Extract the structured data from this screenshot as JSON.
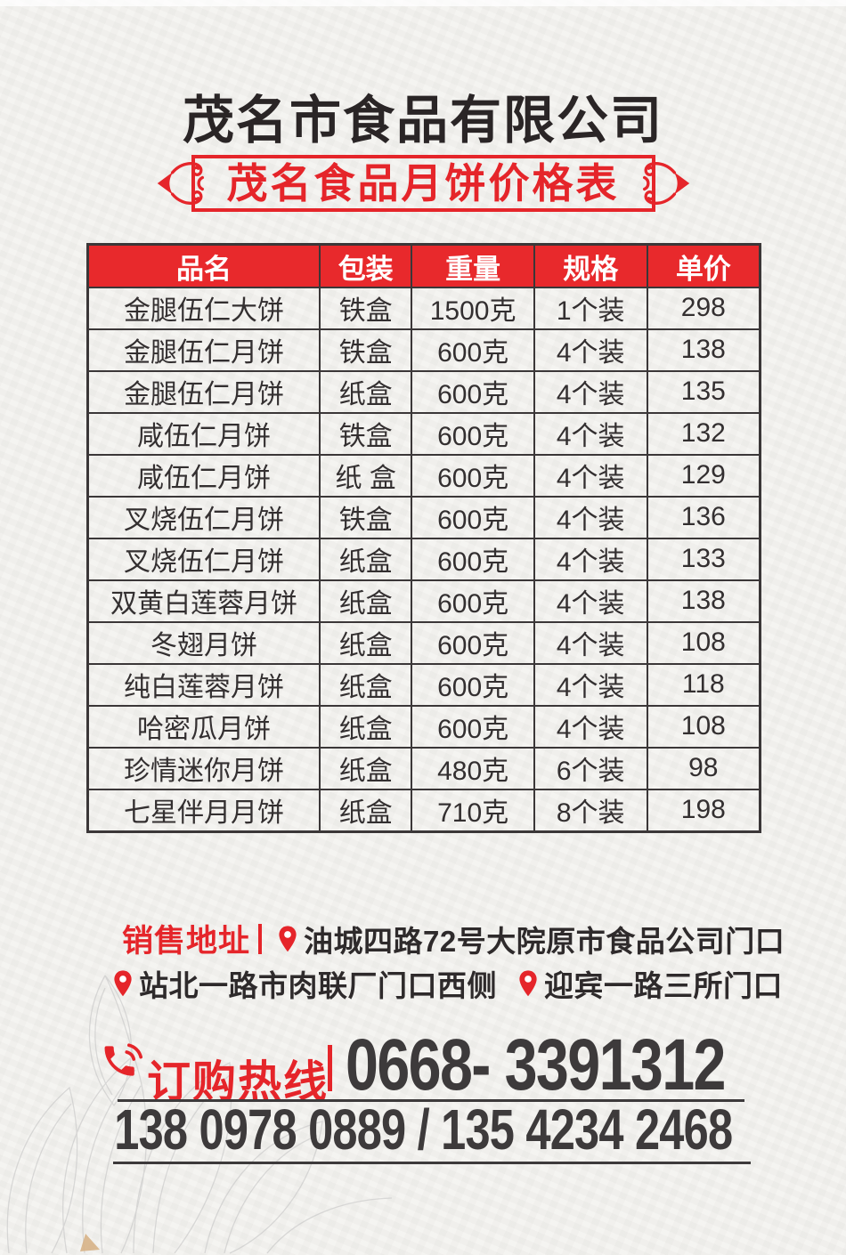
{
  "header": {
    "company": "茂名市食品有限公司",
    "banner": "茂名食品月饼价格表"
  },
  "table": {
    "headers": [
      "品名",
      "包装",
      "重量",
      "规格",
      "单价"
    ],
    "rows": [
      [
        "金腿伍仁大饼",
        "铁盒",
        "1500克",
        "1个装",
        "298"
      ],
      [
        "金腿伍仁月饼",
        "铁盒",
        "600克",
        "4个装",
        "138"
      ],
      [
        "金腿伍仁月饼",
        "纸盒",
        "600克",
        "4个装",
        "135"
      ],
      [
        "咸伍仁月饼",
        "铁盒",
        "600克",
        "4个装",
        "132"
      ],
      [
        "咸伍仁月饼",
        "纸 盒",
        "600克",
        "4个装",
        "129"
      ],
      [
        "叉烧伍仁月饼",
        "铁盒",
        "600克",
        "4个装",
        "136"
      ],
      [
        "叉烧伍仁月饼",
        "纸盒",
        "600克",
        "4个装",
        "133"
      ],
      [
        "双黄白莲蓉月饼",
        "纸盒",
        "600克",
        "4个装",
        "138"
      ],
      [
        "冬翅月饼",
        "纸盒",
        "600克",
        "4个装",
        "108"
      ],
      [
        "纯白莲蓉月饼",
        "纸盒",
        "600克",
        "4个装",
        "118"
      ],
      [
        "哈密瓜月饼",
        "纸盒",
        "600克",
        "4个装",
        "108"
      ],
      [
        "珍情迷你月饼",
        "纸盒",
        "480克",
        "6个装",
        "98"
      ],
      [
        "七星伴月月饼",
        "纸盒",
        "710克",
        "8个装",
        "198"
      ]
    ]
  },
  "address": {
    "label": "销售地址",
    "line1": "油城四路72号大院原市食品公司门口",
    "line2a": "站北一路市肉联厂门口西侧",
    "line2b": "迎宾一路三所门口"
  },
  "hotline": {
    "label": "订购热线",
    "phone_main": "0668- 3391312",
    "phone_mobile": "138 0978 0889 / 135 4234 2468"
  },
  "icons": {
    "address_pin": "location-pin-icon",
    "hotline_phone": "phone-handset-icon",
    "banner_ornament": "scroll-ornament-icon",
    "background_art": "lotus-line-art"
  },
  "colors": {
    "accent_red": "#e5252a",
    "table_header_red": "#e8292c",
    "text_dark": "#332f30",
    "number_dark": "#3d3a3b",
    "grid_line": "#3b3738",
    "background_paper": "#f3f2ef"
  }
}
